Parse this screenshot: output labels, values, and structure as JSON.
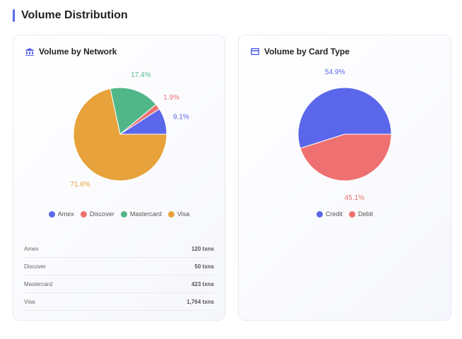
{
  "section_title": "Volume Distribution",
  "chart_data": [
    {
      "type": "pie",
      "title": "Volume by Network",
      "icon": "bank-icon",
      "categories": [
        "Amex",
        "Discover",
        "Mastercard",
        "Visa"
      ],
      "values": [
        9.1,
        1.9,
        17.4,
        71.6
      ],
      "labels": [
        "9.1%",
        "1.9%",
        "17.4%",
        "71.6%"
      ],
      "colors": [
        "#5b67ea",
        "#ef7070",
        "#52b788",
        "#e8a23b"
      ],
      "legend": "bottom",
      "table": [
        {
          "label": "Amex",
          "value": "120 txns"
        },
        {
          "label": "Discover",
          "value": "50 txns"
        },
        {
          "label": "Mastercard",
          "value": "423 txns"
        },
        {
          "label": "Visa",
          "value": "1,764 txns"
        }
      ]
    },
    {
      "type": "pie",
      "title": "Volume by Card Type",
      "icon": "credit-card-icon",
      "categories": [
        "Credit",
        "Debit"
      ],
      "values": [
        54.9,
        45.1
      ],
      "labels": [
        "54.9%",
        "45.1%"
      ],
      "colors": [
        "#5b67ea",
        "#ef7070"
      ],
      "legend": "bottom"
    }
  ]
}
